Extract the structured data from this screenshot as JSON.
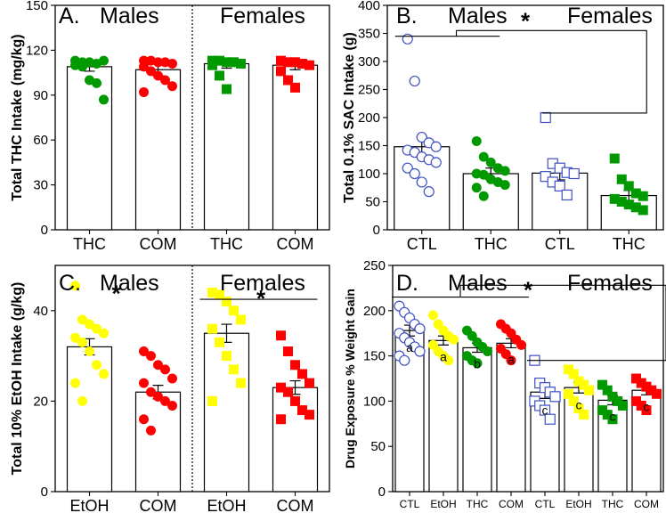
{
  "chart_data": [
    {
      "panel": "A.",
      "type": "bar",
      "group_labels": [
        "Males",
        "Females"
      ],
      "categories": [
        "THC",
        "COM",
        "THC",
        "COM"
      ],
      "ylabel": "Total THC Intake (mg/kg)",
      "ylim": [
        0,
        150
      ],
      "yticks": [
        0,
        30,
        60,
        90,
        120,
        150
      ],
      "values": [
        109,
        107,
        111,
        110
      ],
      "errors": [
        3,
        4,
        3,
        3
      ],
      "colors": [
        "#009a00",
        "#ff0000",
        "#009a00",
        "#ff0000"
      ],
      "markers": [
        "circle-filled",
        "circle-filled",
        "square-filled",
        "square-filled"
      ],
      "points": [
        [
          113,
          112,
          112,
          111,
          113,
          110,
          109,
          100,
          98,
          87
        ],
        [
          113,
          113,
          112,
          112,
          111,
          109,
          106,
          103,
          100,
          96,
          92
        ],
        [
          113,
          113,
          112,
          112,
          111,
          110,
          103,
          94
        ],
        [
          113,
          112,
          112,
          111,
          110,
          106,
          100,
          95
        ]
      ],
      "divider_after": 2
    },
    {
      "panel": "B.",
      "type": "bar",
      "group_labels": [
        "Males",
        "Females"
      ],
      "categories": [
        "CTL",
        "THC",
        "CTL",
        "THC"
      ],
      "ylabel": "Total 0.1% SAC Intake (g)",
      "ylim": [
        0,
        400
      ],
      "yticks": [
        0,
        50,
        100,
        150,
        200,
        250,
        300,
        350,
        400
      ],
      "values": [
        148,
        100,
        101,
        61
      ],
      "errors": [
        18,
        10,
        12,
        9
      ],
      "colors": [
        "#3d4fc4",
        "#009a00",
        "#3d4fc4",
        "#009a00"
      ],
      "markers": [
        "circle-open",
        "circle-filled",
        "square-open",
        "square-filled"
      ],
      "points": [
        [
          340,
          265,
          165,
          155,
          148,
          142,
          138,
          130,
          125,
          120,
          110,
          100,
          85,
          68
        ],
        [
          158,
          130,
          120,
          110,
          105,
          100,
          98,
          90,
          85,
          80,
          75,
          60
        ],
        [
          200,
          118,
          110,
          102,
          100,
          95,
          85,
          78,
          62
        ],
        [
          127,
          90,
          78,
          65,
          60,
          55,
          50,
          45,
          40,
          35
        ]
      ],
      "significance": "*"
    },
    {
      "panel": "C.",
      "type": "bar",
      "group_labels": [
        "Males",
        "Females"
      ],
      "categories": [
        "EtOH",
        "COM",
        "EtOH",
        "COM"
      ],
      "ylabel": "Total 10% EtOH Intake (g/kg)",
      "ylim": [
        0,
        50
      ],
      "yticks": [
        0,
        20,
        40
      ],
      "values": [
        32,
        22,
        35,
        23
      ],
      "errors": [
        1.8,
        1.5,
        2,
        1.5
      ],
      "colors": [
        "#ffff00",
        "#ff0000",
        "#ffff00",
        "#ff0000"
      ],
      "markers": [
        "circle-filled",
        "circle-filled",
        "square-filled",
        "square-filled"
      ],
      "points": [
        [
          45.5,
          38,
          37,
          36,
          35,
          34,
          33,
          31,
          28,
          26,
          24,
          20
        ],
        [
          31,
          30,
          28,
          27,
          25,
          24,
          22,
          21,
          20,
          19,
          16,
          13.5
        ],
        [
          44,
          43.5,
          42,
          40,
          38,
          36,
          33,
          30,
          27,
          24,
          20
        ],
        [
          34.5,
          31,
          28,
          26,
          24,
          23,
          22,
          20,
          18,
          17,
          16
        ]
      ],
      "divider_after": 2,
      "significance": "*"
    },
    {
      "panel": "D.",
      "type": "bar",
      "group_labels": [
        "Males",
        "Females"
      ],
      "categories": [
        "CTL",
        "EtOH",
        "THC",
        "COM",
        "CTL",
        "EtOH",
        "THC",
        "COM"
      ],
      "ylabel": "Drug Exposure % Weight Gain",
      "ylim": [
        0,
        250
      ],
      "yticks": [
        0,
        50,
        100,
        150,
        200,
        250
      ],
      "values": [
        178,
        167,
        159,
        164,
        110,
        115,
        101,
        112
      ],
      "errors": [
        6,
        5,
        5,
        5,
        7,
        6,
        5,
        5
      ],
      "colors": [
        "#3d4fc4",
        "#ffff00",
        "#009a00",
        "#ff0000",
        "#3d4fc4",
        "#ffff00",
        "#009a00",
        "#ff0000"
      ],
      "markers": [
        "circle-open",
        "circle-filled",
        "circle-filled",
        "circle-filled",
        "square-open",
        "square-filled",
        "square-filled",
        "square-filled"
      ],
      "letters": [
        "a",
        "a",
        "b",
        "a",
        "c",
        "c",
        "c",
        "c"
      ],
      "points": [
        [
          205,
          198,
          192,
          185,
          180,
          175,
          170,
          165,
          160,
          155,
          150,
          145
        ],
        [
          195,
          185,
          178,
          172,
          168,
          162,
          155,
          150,
          145
        ],
        [
          178,
          172,
          165,
          160,
          155,
          150,
          145,
          142
        ],
        [
          185,
          180,
          175,
          168,
          162,
          158,
          152,
          145
        ],
        [
          145,
          120,
          115,
          110,
          105,
          100,
          95,
          90,
          80
        ],
        [
          135,
          130,
          122,
          118,
          112,
          108,
          100,
          92,
          85
        ],
        [
          118,
          112,
          105,
          100,
          95,
          90,
          85,
          80
        ],
        [
          125,
          120,
          116,
          112,
          108,
          100,
          95,
          90
        ]
      ],
      "significance": "*"
    }
  ]
}
